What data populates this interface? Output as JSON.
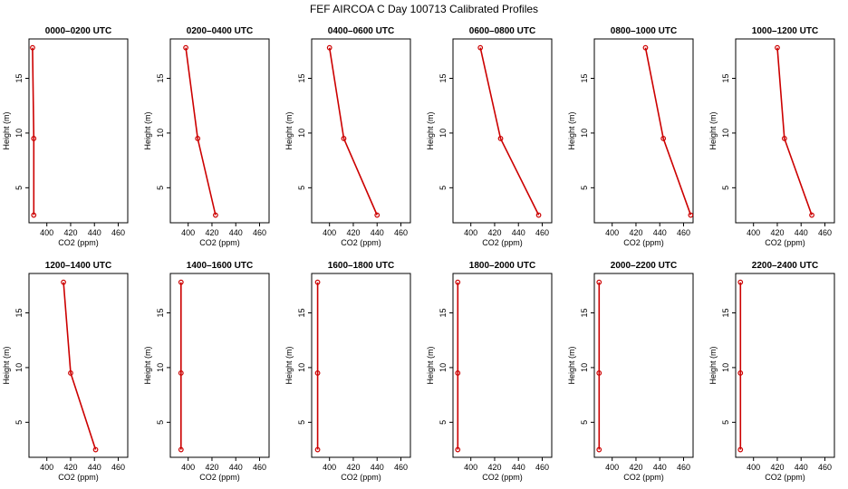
{
  "chart_data": {
    "type": "line",
    "title": "FEF AIRCOA C  Day 100713  Calibrated Profiles",
    "xlabel": "CO2 (ppm)",
    "ylabel": "Height (m)",
    "xlim": [
      385,
      468
    ],
    "ylim": [
      1.8,
      18.6
    ],
    "xticks": [
      "400",
      "420",
      "440",
      "460"
    ],
    "yticks": [
      "5",
      "10",
      "15"
    ],
    "line_color": "#cc0000",
    "heights": [
      2.5,
      9.5,
      17.8
    ],
    "panels": [
      {
        "title": "0000–0200 UTC",
        "co2": [
          389,
          389,
          388
        ]
      },
      {
        "title": "0200–0400 UTC",
        "co2": [
          423,
          408,
          398
        ]
      },
      {
        "title": "0400–0600 UTC",
        "co2": [
          440,
          412,
          400
        ]
      },
      {
        "title": "0600–0800 UTC",
        "co2": [
          457,
          425,
          408
        ]
      },
      {
        "title": "0800–1000 UTC",
        "co2": [
          466,
          443,
          428
        ]
      },
      {
        "title": "1000–1200 UTC",
        "co2": [
          449,
          426,
          420
        ]
      },
      {
        "title": "1200–1400 UTC",
        "co2": [
          441,
          420,
          414
        ]
      },
      {
        "title": "1400–1600 UTC",
        "co2": [
          394,
          394,
          394
        ]
      },
      {
        "title": "1600–1800 UTC",
        "co2": [
          390,
          390,
          390
        ]
      },
      {
        "title": "1800–2000 UTC",
        "co2": [
          389,
          389,
          389
        ]
      },
      {
        "title": "2000–2200 UTC",
        "co2": [
          389,
          389,
          389
        ]
      },
      {
        "title": "2200–2400 UTC",
        "co2": [
          389,
          389,
          389
        ]
      }
    ]
  }
}
